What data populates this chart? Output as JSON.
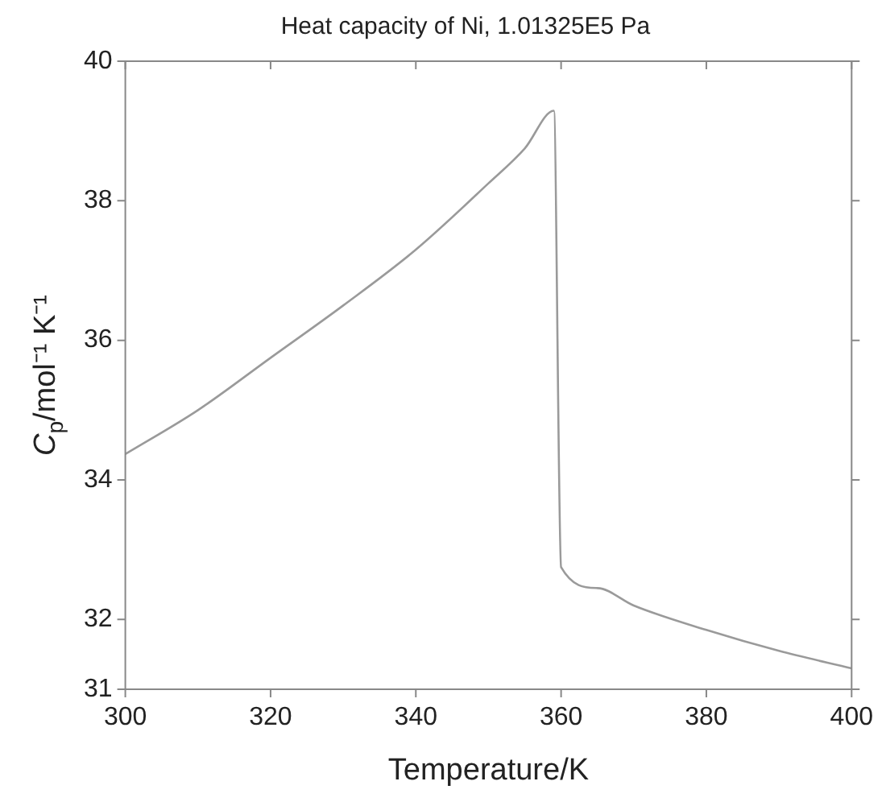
{
  "chart_data": {
    "type": "line",
    "title": "Heat capacity of Ni, 1.01325E5 Pa",
    "xlabel": "Temperature/K",
    "ylabel": "C$_{p}$/mol⁻¹ K⁻¹",
    "x": [
      300,
      310,
      320,
      330,
      340,
      350,
      355,
      359,
      360,
      365,
      370,
      380,
      390,
      400
    ],
    "series": [
      {
        "color": "#9a9a9a",
        "values": [
          34.37,
          35.0,
          35.75,
          36.5,
          37.3,
          38.25,
          38.75,
          39.29,
          32.75,
          32.45,
          32.2,
          31.85,
          31.55,
          31.3
        ]
      }
    ],
    "xlim": [
      300,
      400
    ],
    "xticks": [
      300,
      320,
      340,
      360,
      380,
      400
    ],
    "ylim": [
      31,
      40
    ],
    "yticks": [
      31,
      32,
      34,
      36,
      38,
      40
    ],
    "marker": "none",
    "line_style": "solid",
    "legend": false
  }
}
